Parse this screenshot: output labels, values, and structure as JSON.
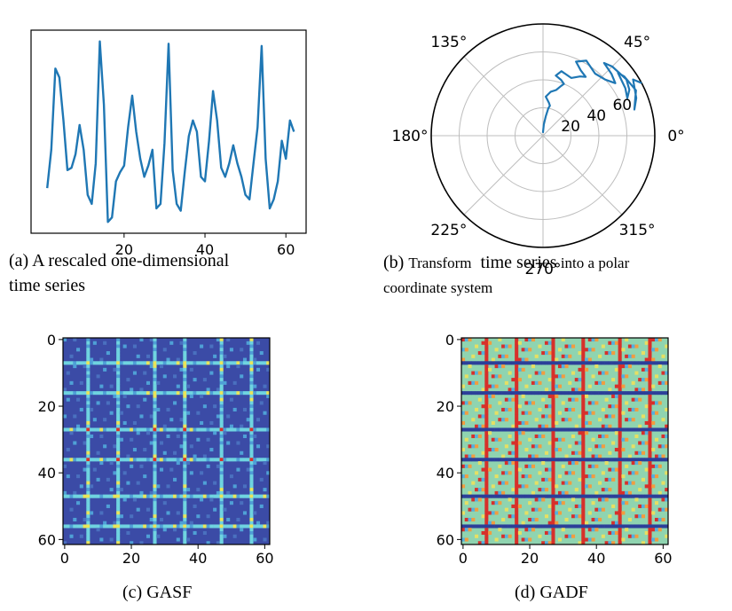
{
  "captions": {
    "a_line1": "(a) A rescaled one-dimensional",
    "a_line2": "time series",
    "b_prefix": "(b) ",
    "b_word1": "Transform",
    "b_mid1": "  ",
    "b_word2": "time series",
    "b_rest_line1": " into a polar",
    "b_line2": "coordinate system",
    "c": "(c) GASF",
    "d": "(d) GADF"
  },
  "chart_data": [
    {
      "type": "line",
      "panel": "a",
      "x": [
        1,
        2,
        3,
        4,
        5,
        6,
        7,
        8,
        9,
        10,
        11,
        12,
        13,
        14,
        15,
        16,
        17,
        18,
        19,
        20,
        21,
        22,
        23,
        24,
        25,
        26,
        27,
        28,
        29,
        30,
        31,
        32,
        33,
        34,
        35,
        36,
        37,
        38,
        39,
        40,
        41,
        42,
        43,
        44,
        45,
        46,
        47,
        48,
        49,
        50,
        51,
        52,
        53,
        54,
        55,
        56,
        57,
        58,
        59,
        60,
        61,
        62
      ],
      "y": [
        0.25,
        0.42,
        0.78,
        0.74,
        0.55,
        0.33,
        0.34,
        0.4,
        0.53,
        0.42,
        0.22,
        0.18,
        0.36,
        0.9,
        0.62,
        0.1,
        0.12,
        0.28,
        0.32,
        0.35,
        0.52,
        0.66,
        0.5,
        0.38,
        0.3,
        0.35,
        0.42,
        0.16,
        0.18,
        0.45,
        0.89,
        0.33,
        0.18,
        0.15,
        0.32,
        0.48,
        0.55,
        0.5,
        0.3,
        0.28,
        0.46,
        0.68,
        0.55,
        0.34,
        0.3,
        0.36,
        0.44,
        0.36,
        0.3,
        0.22,
        0.2,
        0.36,
        0.52,
        0.88,
        0.38,
        0.16,
        0.2,
        0.28,
        0.46,
        0.38,
        0.55,
        0.5
      ],
      "xlim": [
        -3,
        65
      ],
      "ylim": [
        0.05,
        0.95
      ],
      "xticks": [
        "20",
        "40",
        "60"
      ],
      "xtick_values": [
        20,
        40,
        60
      ],
      "color": "#1f77b4"
    },
    {
      "type": "line",
      "panel": "b",
      "projection": "polar",
      "theta_deg": [
        91,
        86,
        82,
        79,
        77,
        80,
        86,
        80,
        74,
        70,
        68,
        72,
        78,
        74,
        64,
        58,
        54,
        60,
        66,
        60,
        50,
        42,
        36,
        42,
        50,
        45,
        34,
        28,
        24,
        30,
        40,
        36,
        26,
        20,
        16,
        22,
        32,
        28
      ],
      "r": [
        2,
        8,
        14,
        20,
        22,
        24,
        28,
        32,
        34,
        38,
        40,
        42,
        44,
        48,
        46,
        50,
        52,
        54,
        58,
        62,
        58,
        60,
        64,
        66,
        68,
        70,
        72,
        70,
        66,
        68,
        70,
        72,
        74,
        70,
        68,
        72,
        76,
        80
      ],
      "rlim": [
        0,
        80
      ],
      "rticks": [
        "20",
        "40",
        "60"
      ],
      "rtick_values": [
        20,
        40,
        60
      ],
      "angle_labels": [
        "0°",
        "45°",
        "135°",
        "180°",
        "225°",
        "270°",
        "315°"
      ],
      "color": "#1f77b4"
    },
    {
      "type": "heatmap",
      "panel": "c",
      "title": "(c) GASF",
      "size": 62,
      "colormap": "jet",
      "stripe_indices": [
        7,
        16,
        27,
        36,
        47,
        56
      ],
      "xticks": [
        "0",
        "20",
        "40",
        "60"
      ],
      "yticks": [
        "0",
        "20",
        "40",
        "60"
      ],
      "tick_values": [
        0,
        20,
        40,
        60
      ],
      "background": "#3b4ba6",
      "colors": [
        "#3b4ba6",
        "#4fa0d6",
        "#6fd4e0",
        "#e9e55a",
        "#f0a23a",
        "#d8312a"
      ]
    },
    {
      "type": "heatmap",
      "panel": "d",
      "title": "(d) GADF",
      "size": 62,
      "colormap": "jet",
      "stripe_indices": [
        7,
        16,
        27,
        36,
        47,
        56
      ],
      "xticks": [
        "0",
        "20",
        "40",
        "60"
      ],
      "yticks": [
        "0",
        "20",
        "40",
        "60"
      ],
      "tick_values": [
        0,
        20,
        40,
        60
      ],
      "background": "#8fd4b0",
      "colors": [
        "#2c3f99",
        "#52b0e0",
        "#8fd4b0",
        "#e6e063",
        "#f29c3f",
        "#d7302a"
      ]
    }
  ]
}
